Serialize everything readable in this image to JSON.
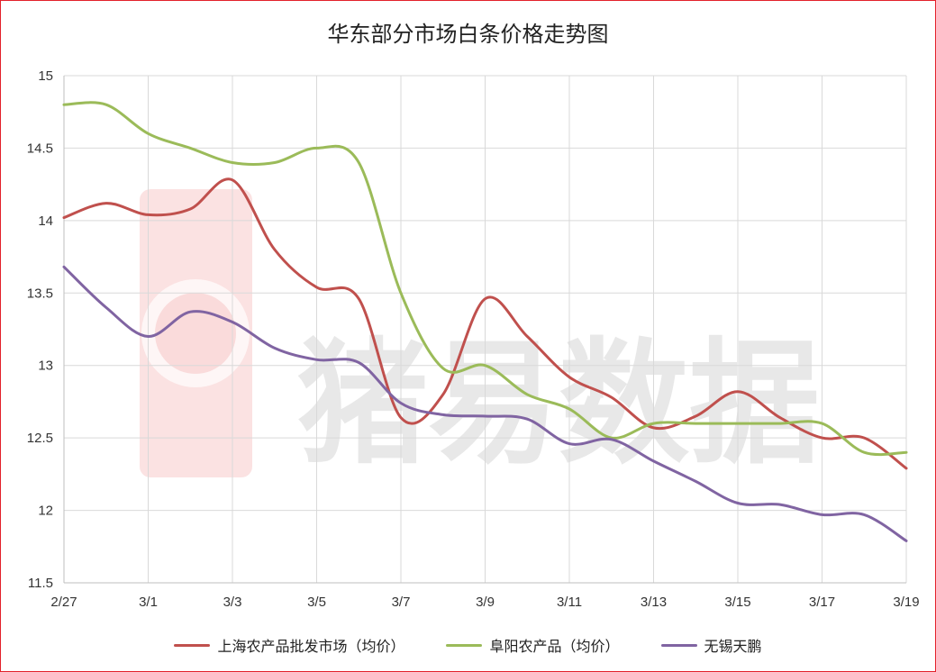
{
  "chart_data": {
    "type": "line",
    "title": "华东部分市场白条价格走势图",
    "x": [
      "2/27",
      "2/28",
      "3/1",
      "3/2",
      "3/3",
      "3/4",
      "3/5",
      "3/6",
      "3/7",
      "3/8",
      "3/9",
      "3/10",
      "3/11",
      "3/12",
      "3/13",
      "3/14",
      "3/15",
      "3/16",
      "3/17",
      "3/18",
      "3/19"
    ],
    "x_tick_labels": [
      "2/27",
      "3/1",
      "3/3",
      "3/5",
      "3/7",
      "3/9",
      "3/11",
      "3/13",
      "3/15",
      "3/17",
      "3/19"
    ],
    "ylim": [
      11.5,
      15
    ],
    "y_ticks": [
      11.5,
      12,
      12.5,
      13,
      13.5,
      14,
      14.5,
      15
    ],
    "grid": true,
    "legend_position": "bottom",
    "series": [
      {
        "name": "上海农产品批发市场（均价）",
        "color": "#c0504d",
        "values": [
          14.02,
          14.12,
          14.04,
          14.08,
          14.28,
          13.8,
          13.54,
          13.46,
          12.64,
          12.8,
          13.46,
          13.2,
          12.92,
          12.78,
          12.57,
          12.65,
          12.82,
          12.64,
          12.5,
          12.5,
          12.29
        ]
      },
      {
        "name": "阜阳农产品（均价）",
        "color": "#9bbb59",
        "values": [
          14.8,
          14.8,
          14.6,
          14.5,
          14.4,
          14.4,
          14.5,
          14.4,
          13.5,
          12.98,
          13.0,
          12.8,
          12.7,
          12.5,
          12.6,
          12.6,
          12.6,
          12.6,
          12.6,
          12.4,
          12.4
        ]
      },
      {
        "name": "无锡天鹏",
        "color": "#8064a2",
        "values": [
          13.68,
          13.4,
          13.2,
          13.37,
          13.3,
          13.12,
          13.04,
          13.02,
          12.74,
          12.66,
          12.65,
          12.63,
          12.46,
          12.49,
          12.34,
          12.2,
          12.05,
          12.04,
          11.97,
          11.97,
          11.79
        ]
      }
    ]
  },
  "watermark": {
    "text": "猪易数据",
    "icon": "logo-mark-icon"
  }
}
